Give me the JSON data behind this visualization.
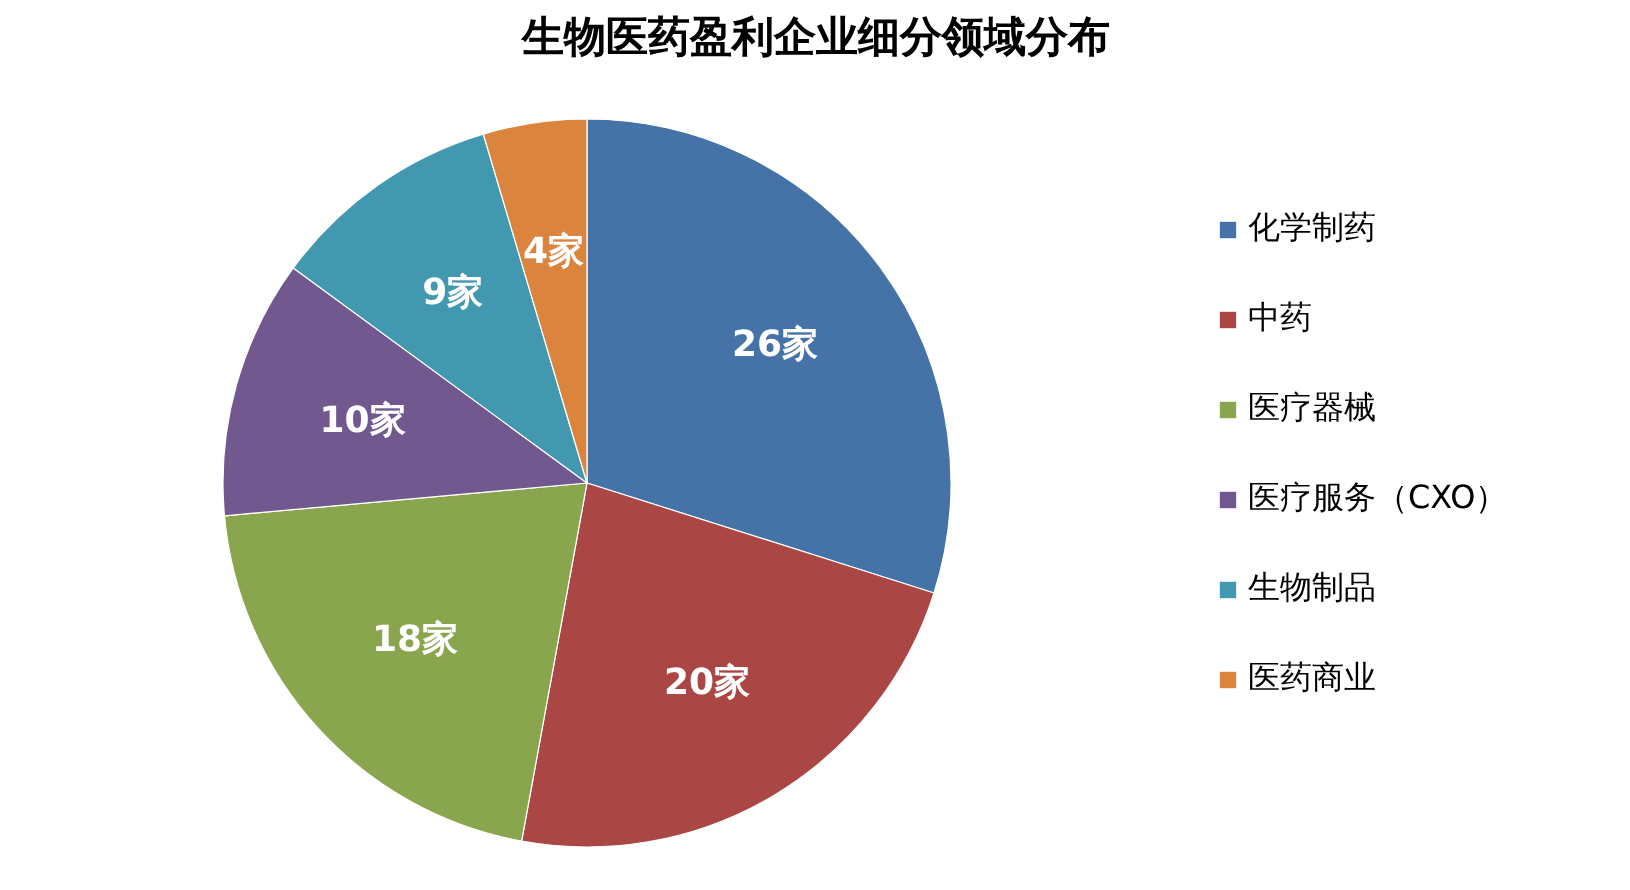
{
  "chart_data": {
    "type": "pie",
    "title": "生物医药盈利企业细分领域分布",
    "categories": [
      "化学制药",
      "中药",
      "医疗器械",
      "医疗服务（CXO）",
      "生物制品",
      "医药商业"
    ],
    "values": [
      26,
      20,
      18,
      10,
      9,
      4
    ],
    "colors": [
      "#4572a7",
      "#aa4643",
      "#89a54e",
      "#71588f",
      "#4198af",
      "#db843d"
    ],
    "value_labels": [
      "26家",
      "20家",
      "18家",
      "10家",
      "9家",
      "4家"
    ],
    "legend": "right"
  }
}
